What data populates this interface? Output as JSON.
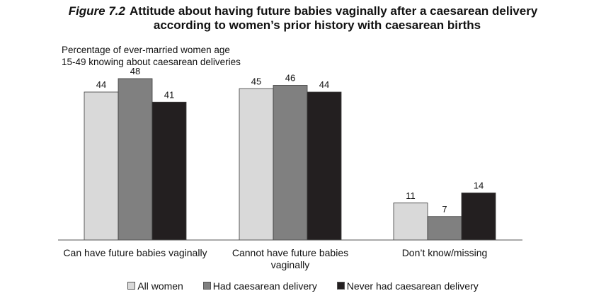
{
  "title": {
    "figure": "Figure 7.2",
    "line1": "Attitude about having future babies vaginally after a caesarean delivery",
    "line2": "according to women’s prior history with caesarean births"
  },
  "subtitle": {
    "line1": "Percentage of ever-married women age",
    "line2": "15-49 knowing about caesarean deliveries"
  },
  "colors": {
    "all_women": "#d9d9d9",
    "had_caesarean": "#808080",
    "never_had_caesarean": "#231f20"
  },
  "chart_data": {
    "type": "bar",
    "categories": [
      [
        "Can have future babies vaginally"
      ],
      [
        "Cannot have future babies",
        "vaginally"
      ],
      [
        "Don’t know/missing"
      ]
    ],
    "series": [
      {
        "name": "All women",
        "values": [
          44,
          45,
          11
        ]
      },
      {
        "name": "Had caesarean delivery",
        "values": [
          48,
          46,
          7
        ]
      },
      {
        "name": "Never had caesarean delivery",
        "values": [
          41,
          44,
          14
        ]
      }
    ],
    "ylim": [
      0,
      52
    ],
    "grid": false,
    "legend": "bottom",
    "data_labels": true
  }
}
